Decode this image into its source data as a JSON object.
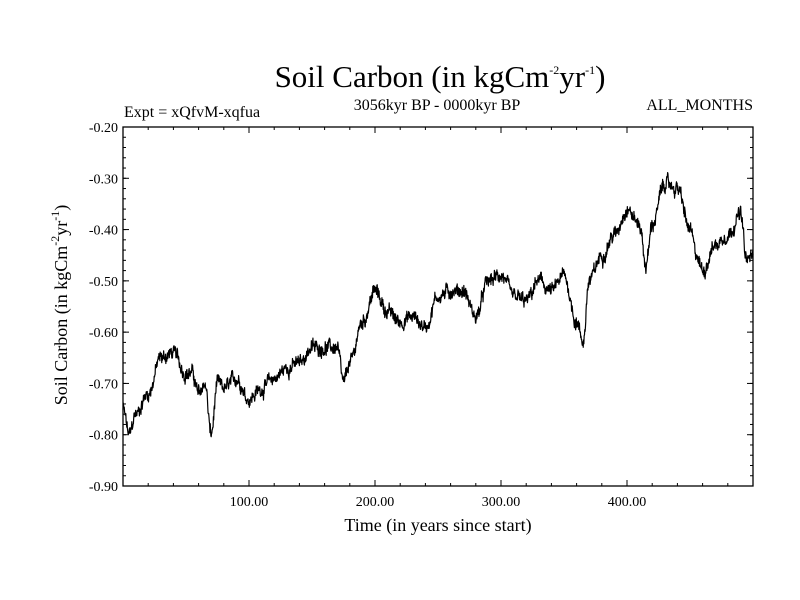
{
  "chart_data": {
    "type": "line",
    "title": {
      "main": "Soil Carbon (in kgCm",
      "exp1": "-2",
      "mid": "yr",
      "exp2": "-1",
      "end": ")"
    },
    "subtitle_left": "Expt = xQfvM-xqfua",
    "subtitle_center": "3056kyr BP - 0000kyr BP",
    "subtitle_right": "ALL_MONTHS",
    "xlabel": "Time (in years since start)",
    "ylabel": {
      "main": "Soil Carbon (in kgCm",
      "exp1": "-2",
      "mid": "yr",
      "exp2": "-1",
      "end": ")"
    },
    "xlim": [
      0,
      500
    ],
    "ylim": [
      -0.9,
      -0.2
    ],
    "x_ticks": [
      100,
      200,
      300,
      400
    ],
    "x_tick_labels": [
      "100.00",
      "200.00",
      "300.00",
      "400.00"
    ],
    "y_ticks": [
      -0.9,
      -0.8,
      -0.7,
      -0.6,
      -0.5,
      -0.4,
      -0.3,
      -0.2
    ],
    "y_tick_labels": [
      "-0.90",
      "-0.80",
      "-0.70",
      "-0.60",
      "-0.50",
      "-0.40",
      "-0.30",
      "-0.20"
    ],
    "series": [
      {
        "name": "Soil Carbon",
        "color": "#000000",
        "x": [
          0,
          5,
          10,
          20,
          30,
          40,
          50,
          55,
          60,
          65,
          70,
          75,
          80,
          90,
          100,
          110,
          120,
          130,
          140,
          150,
          160,
          170,
          175,
          180,
          190,
          200,
          210,
          220,
          230,
          240,
          250,
          260,
          270,
          280,
          290,
          300,
          310,
          320,
          330,
          340,
          350,
          360,
          365,
          370,
          380,
          390,
          400,
          410,
          415,
          420,
          430,
          440,
          450,
          455,
          460,
          470,
          480,
          490,
          495,
          500
        ],
        "values": [
          -0.75,
          -0.8,
          -0.76,
          -0.72,
          -0.65,
          -0.64,
          -0.68,
          -0.68,
          -0.72,
          -0.7,
          -0.8,
          -0.7,
          -0.71,
          -0.69,
          -0.73,
          -0.71,
          -0.69,
          -0.67,
          -0.66,
          -0.63,
          -0.63,
          -0.63,
          -0.7,
          -0.66,
          -0.58,
          -0.52,
          -0.56,
          -0.58,
          -0.57,
          -0.59,
          -0.53,
          -0.52,
          -0.52,
          -0.57,
          -0.5,
          -0.49,
          -0.53,
          -0.54,
          -0.5,
          -0.52,
          -0.49,
          -0.58,
          -0.62,
          -0.5,
          -0.45,
          -0.41,
          -0.36,
          -0.39,
          -0.47,
          -0.39,
          -0.31,
          -0.32,
          -0.4,
          -0.45,
          -0.48,
          -0.43,
          -0.41,
          -0.37,
          -0.46,
          -0.45
        ]
      }
    ]
  }
}
